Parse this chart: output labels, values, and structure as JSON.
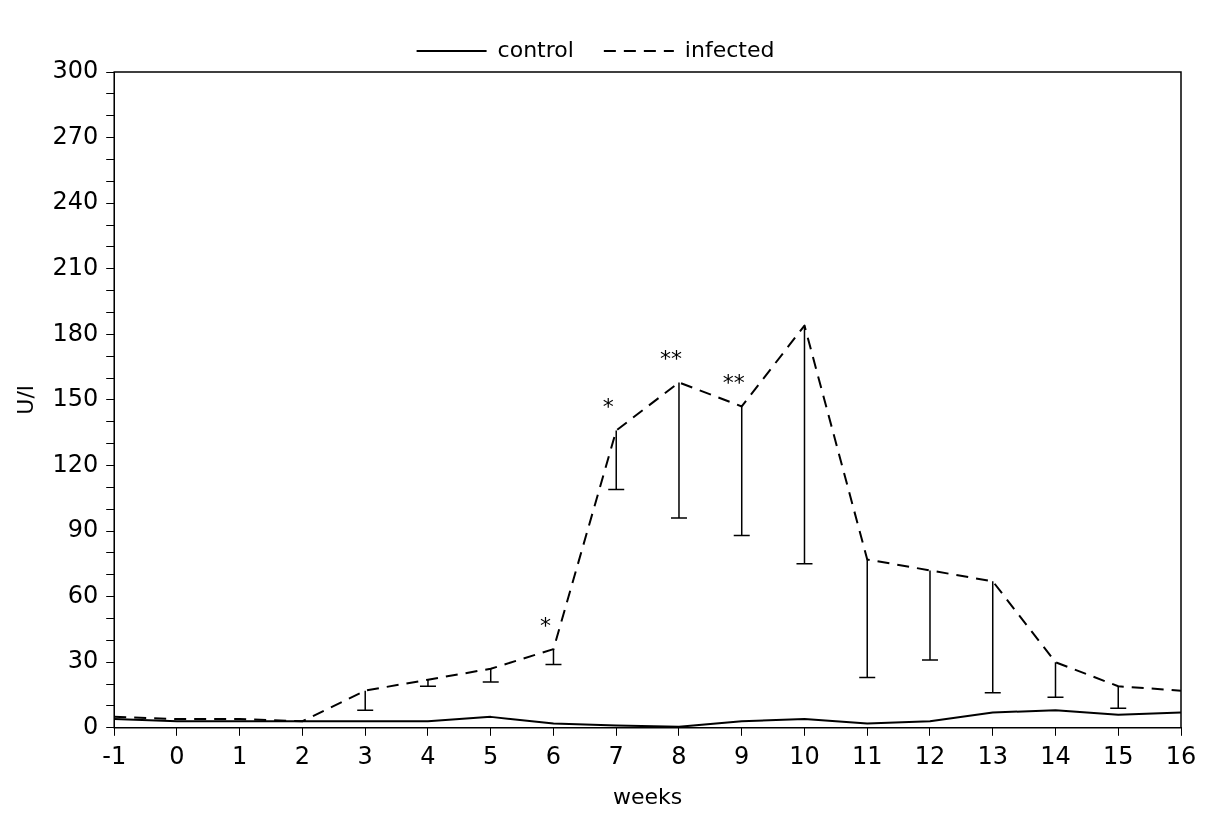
{
  "chart_data": {
    "type": "line",
    "xlabel": "weeks",
    "ylabel": "U/l",
    "x": [
      -1,
      0,
      1,
      2,
      3,
      4,
      5,
      6,
      7,
      8,
      9,
      10,
      11,
      12,
      13,
      14,
      15,
      16
    ],
    "series": [
      {
        "name": "control",
        "color": "#000000",
        "line_style": "solid",
        "values": [
          4,
          3,
          3,
          3,
          3,
          3,
          5,
          2,
          1,
          0.5,
          3,
          4,
          2,
          3,
          7,
          8,
          6,
          7
        ]
      },
      {
        "name": "infected",
        "color": "#000000",
        "line_style": "dashed",
        "values": [
          5,
          4,
          4,
          3,
          17,
          22,
          27,
          36,
          136,
          158,
          147,
          184,
          77,
          72,
          67,
          30,
          19,
          17
        ],
        "errors": [
          null,
          null,
          null,
          null,
          [
            8,
            17
          ],
          [
            19,
            22
          ],
          [
            21,
            27
          ],
          [
            29,
            36
          ],
          [
            109,
            136
          ],
          [
            96,
            158
          ],
          [
            88,
            147
          ],
          [
            75,
            184
          ],
          [
            23,
            77
          ],
          [
            31,
            72
          ],
          [
            16,
            67
          ],
          [
            14,
            30
          ],
          [
            9,
            19
          ],
          null
        ]
      }
    ],
    "xlim": [
      -1,
      16
    ],
    "xticks": [
      -1,
      0,
      1,
      2,
      3,
      4,
      5,
      6,
      7,
      8,
      9,
      10,
      11,
      12,
      13,
      14,
      15,
      16
    ],
    "ylim": [
      0,
      300
    ],
    "yticks": [
      0,
      {
        "value": 10,
        "label": null
      },
      {
        "value": 20,
        "label": null
      },
      30,
      {
        "value": 40,
        "label": null
      },
      {
        "value": 50,
        "label": null
      },
      60,
      {
        "value": 70,
        "label": null
      },
      {
        "value": 80,
        "label": null
      },
      90,
      {
        "value": 100,
        "label": null
      },
      {
        "value": 110,
        "label": null
      },
      120,
      {
        "value": 130,
        "label": null
      },
      {
        "value": 140,
        "label": null
      },
      150,
      {
        "value": 160,
        "label": null
      },
      {
        "value": 170,
        "label": null
      },
      180,
      {
        "value": 190,
        "label": null
      },
      {
        "value": 200,
        "label": null
      },
      210,
      {
        "value": 220,
        "label": null
      },
      {
        "value": 230,
        "label": null
      },
      240,
      {
        "value": 250,
        "label": null
      },
      {
        "value": 260,
        "label": null
      },
      270,
      {
        "value": 280,
        "label": null
      },
      {
        "value": 290,
        "label": null
      },
      300
    ],
    "annotations": [
      {
        "text": "*",
        "x": 6,
        "y": 36
      },
      {
        "text": "*",
        "x": 7,
        "y": 136
      },
      {
        "text": "**",
        "x": 8,
        "y": 158
      },
      {
        "text": "**",
        "x": 9,
        "y": 147
      }
    ],
    "legend": "top",
    "marker": "none",
    "grid": false
  }
}
